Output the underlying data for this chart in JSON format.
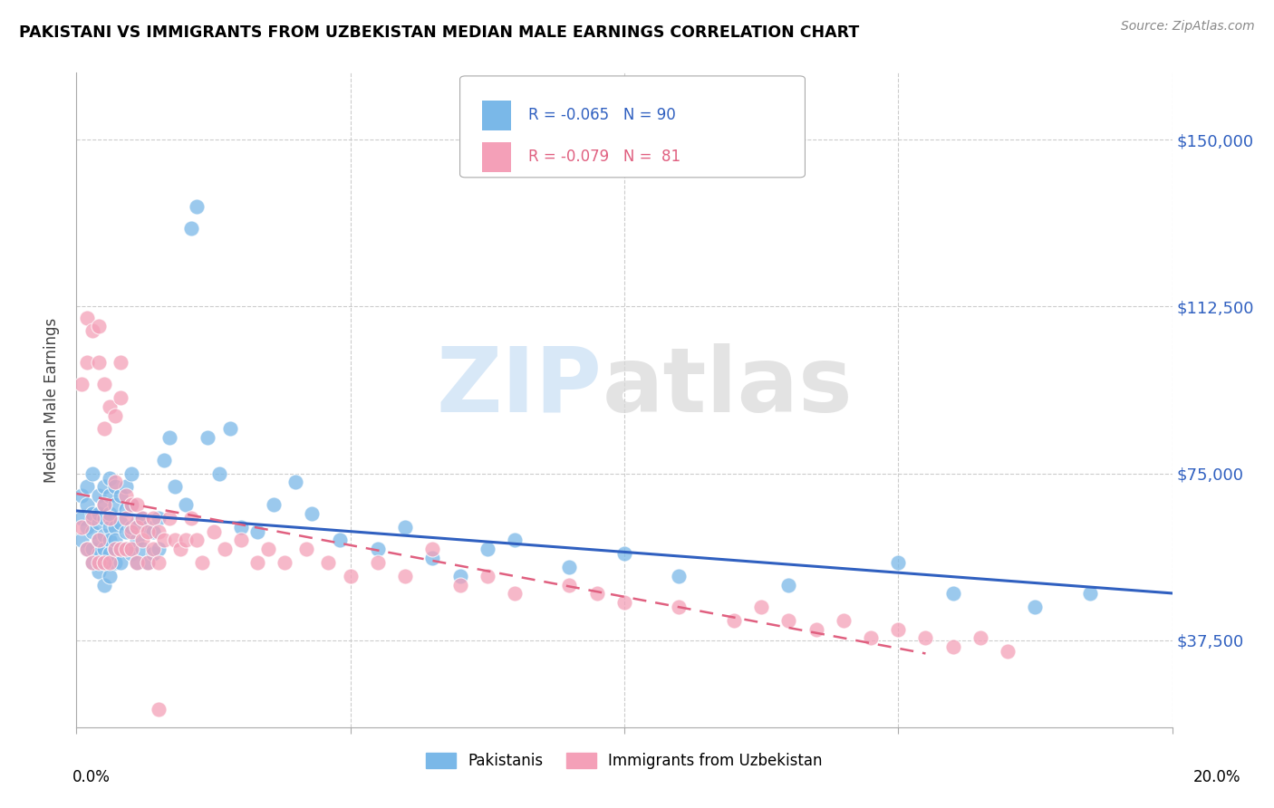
{
  "title": "PAKISTANI VS IMMIGRANTS FROM UZBEKISTAN MEDIAN MALE EARNINGS CORRELATION CHART",
  "source": "Source: ZipAtlas.com",
  "ylabel": "Median Male Earnings",
  "yticks": [
    37500,
    75000,
    112500,
    150000
  ],
  "ytick_labels": [
    "$37,500",
    "$75,000",
    "$112,500",
    "$150,000"
  ],
  "xlim": [
    0.0,
    0.2
  ],
  "ylim": [
    18000,
    165000
  ],
  "pakistani_color": "#7ab8e8",
  "uzbek_color": "#f4a0b8",
  "trend_pakistani_color": "#3060c0",
  "trend_uzbek_color": "#e06080",
  "watermark_zip_color": "#c8dff5",
  "watermark_atlas_color": "#d8d8d8",
  "pakistani_x": [
    0.001,
    0.001,
    0.001,
    0.002,
    0.002,
    0.002,
    0.002,
    0.003,
    0.003,
    0.003,
    0.003,
    0.003,
    0.004,
    0.004,
    0.004,
    0.004,
    0.004,
    0.004,
    0.005,
    0.005,
    0.005,
    0.005,
    0.005,
    0.005,
    0.005,
    0.006,
    0.006,
    0.006,
    0.006,
    0.006,
    0.006,
    0.006,
    0.007,
    0.007,
    0.007,
    0.007,
    0.007,
    0.007,
    0.008,
    0.008,
    0.008,
    0.008,
    0.009,
    0.009,
    0.009,
    0.009,
    0.01,
    0.01,
    0.01,
    0.01,
    0.011,
    0.011,
    0.011,
    0.012,
    0.012,
    0.013,
    0.013,
    0.014,
    0.014,
    0.015,
    0.015,
    0.016,
    0.017,
    0.018,
    0.02,
    0.021,
    0.022,
    0.024,
    0.026,
    0.028,
    0.03,
    0.033,
    0.036,
    0.04,
    0.043,
    0.048,
    0.055,
    0.06,
    0.065,
    0.07,
    0.075,
    0.08,
    0.09,
    0.1,
    0.11,
    0.13,
    0.15,
    0.16,
    0.175,
    0.185
  ],
  "pakistani_y": [
    65000,
    70000,
    60000,
    63000,
    68000,
    58000,
    72000,
    62000,
    66000,
    58000,
    55000,
    75000,
    60000,
    64000,
    57000,
    70000,
    53000,
    66000,
    61000,
    65000,
    58000,
    72000,
    55000,
    68000,
    50000,
    63000,
    66000,
    60000,
    57000,
    70000,
    52000,
    74000,
    63000,
    58000,
    68000,
    55000,
    72000,
    60000,
    64000,
    58000,
    70000,
    55000,
    62000,
    67000,
    58000,
    72000,
    63000,
    68000,
    57000,
    75000,
    60000,
    64000,
    55000,
    65000,
    58000,
    63000,
    55000,
    62000,
    57000,
    65000,
    58000,
    78000,
    83000,
    72000,
    68000,
    130000,
    135000,
    83000,
    75000,
    85000,
    63000,
    62000,
    68000,
    73000,
    66000,
    60000,
    58000,
    63000,
    56000,
    52000,
    58000,
    60000,
    54000,
    57000,
    52000,
    50000,
    55000,
    48000,
    45000,
    48000
  ],
  "uzbek_x": [
    0.001,
    0.001,
    0.002,
    0.002,
    0.002,
    0.003,
    0.003,
    0.003,
    0.004,
    0.004,
    0.004,
    0.004,
    0.005,
    0.005,
    0.005,
    0.005,
    0.006,
    0.006,
    0.006,
    0.007,
    0.007,
    0.007,
    0.008,
    0.008,
    0.008,
    0.009,
    0.009,
    0.009,
    0.01,
    0.01,
    0.01,
    0.011,
    0.011,
    0.011,
    0.012,
    0.012,
    0.013,
    0.013,
    0.014,
    0.014,
    0.015,
    0.015,
    0.016,
    0.017,
    0.018,
    0.019,
    0.02,
    0.021,
    0.022,
    0.023,
    0.025,
    0.027,
    0.03,
    0.033,
    0.035,
    0.038,
    0.042,
    0.046,
    0.05,
    0.055,
    0.06,
    0.065,
    0.07,
    0.075,
    0.08,
    0.09,
    0.095,
    0.1,
    0.11,
    0.12,
    0.125,
    0.13,
    0.135,
    0.14,
    0.145,
    0.15,
    0.155,
    0.16,
    0.165,
    0.17,
    0.015
  ],
  "uzbek_y": [
    95000,
    63000,
    110000,
    100000,
    58000,
    107000,
    65000,
    55000,
    108000,
    100000,
    60000,
    55000,
    95000,
    85000,
    68000,
    55000,
    90000,
    65000,
    55000,
    88000,
    73000,
    58000,
    100000,
    92000,
    58000,
    70000,
    65000,
    58000,
    68000,
    62000,
    58000,
    68000,
    63000,
    55000,
    65000,
    60000,
    62000,
    55000,
    65000,
    58000,
    62000,
    55000,
    60000,
    65000,
    60000,
    58000,
    60000,
    65000,
    60000,
    55000,
    62000,
    58000,
    60000,
    55000,
    58000,
    55000,
    58000,
    55000,
    52000,
    55000,
    52000,
    58000,
    50000,
    52000,
    48000,
    50000,
    48000,
    46000,
    45000,
    42000,
    45000,
    42000,
    40000,
    42000,
    38000,
    40000,
    38000,
    36000,
    38000,
    35000,
    22000
  ]
}
